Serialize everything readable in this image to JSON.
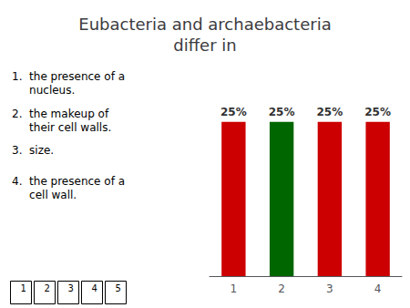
{
  "chart_data": {
    "type": "bar",
    "title": "Eubacteria and archaebacteria\ndiffer in",
    "categories": [
      "1",
      "2",
      "3",
      "4"
    ],
    "values": [
      25,
      25,
      25,
      25
    ],
    "value_labels": [
      "25%",
      "25%",
      "25%",
      "25%"
    ],
    "colors": [
      "#cc0000",
      "#006600",
      "#cc0000",
      "#cc0000"
    ],
    "ylim": [
      0,
      30
    ],
    "yticks": [],
    "grid": false,
    "data_labels": true,
    "tick_labels": "x",
    "annotations": [
      "1.  the presence of a\n     nucleus.",
      "2.  the makeup of\n     their cell walls.",
      "3.  size.",
      "4.  the presence of a\n     cell wall."
    ],
    "navigation": [
      "1",
      "2",
      "3",
      "4",
      "5"
    ]
  }
}
